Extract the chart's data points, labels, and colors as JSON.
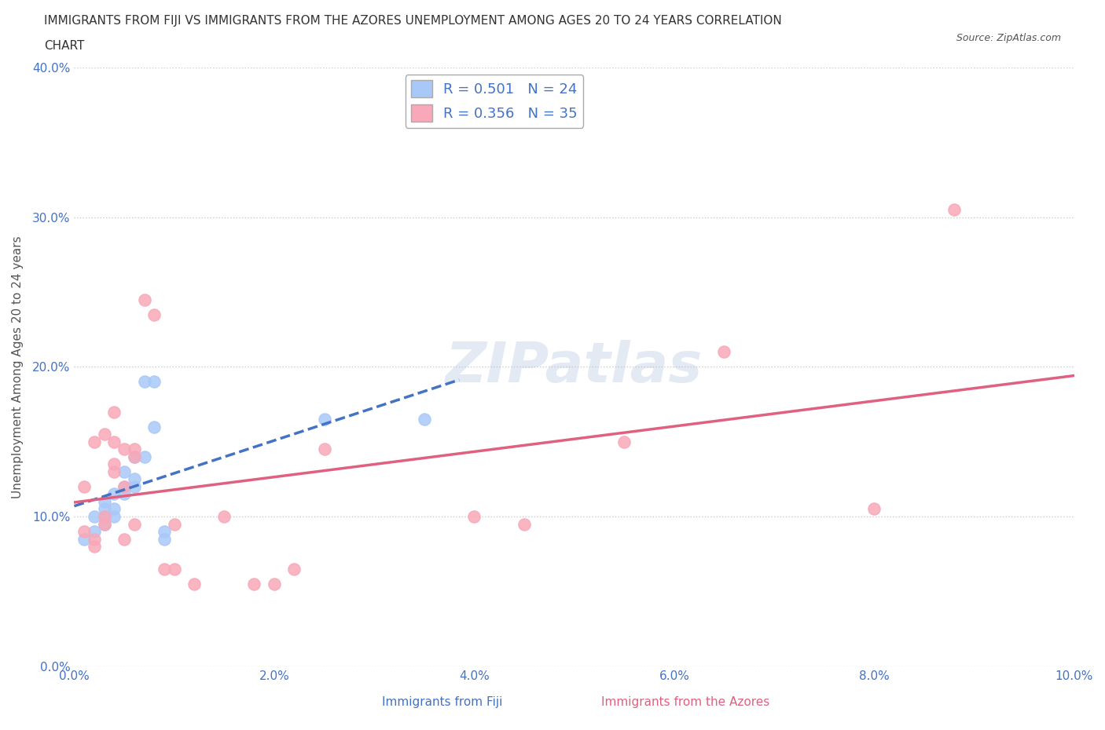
{
  "title_line1": "IMMIGRANTS FROM FIJI VS IMMIGRANTS FROM THE AZORES UNEMPLOYMENT AMONG AGES 20 TO 24 YEARS CORRELATION",
  "title_line2": "CHART",
  "source": "Source: ZipAtlas.com",
  "ylabel": "Unemployment Among Ages 20 to 24 years",
  "xlabel_fiji": "Immigrants from Fiji",
  "xlabel_azores": "Immigrants from the Azores",
  "xlim": [
    0.0,
    0.1
  ],
  "ylim": [
    0.0,
    0.4
  ],
  "xticks": [
    0.0,
    0.02,
    0.04,
    0.06,
    0.08,
    0.1
  ],
  "yticks": [
    0.0,
    0.1,
    0.2,
    0.3,
    0.4
  ],
  "fiji_color": "#a8c8f8",
  "azores_color": "#f8a8b8",
  "fiji_line_color": "#4472c4",
  "azores_line_color": "#e06080",
  "fiji_R": 0.501,
  "fiji_N": 24,
  "azores_R": 0.356,
  "azores_N": 35,
  "fiji_x": [
    0.001,
    0.002,
    0.002,
    0.003,
    0.003,
    0.003,
    0.003,
    0.004,
    0.004,
    0.004,
    0.005,
    0.005,
    0.005,
    0.006,
    0.006,
    0.006,
    0.007,
    0.007,
    0.008,
    0.008,
    0.009,
    0.009,
    0.025,
    0.035
  ],
  "fiji_y": [
    0.085,
    0.09,
    0.1,
    0.095,
    0.1,
    0.105,
    0.11,
    0.105,
    0.1,
    0.115,
    0.12,
    0.115,
    0.13,
    0.12,
    0.125,
    0.14,
    0.14,
    0.19,
    0.19,
    0.16,
    0.09,
    0.085,
    0.165,
    0.165
  ],
  "azores_x": [
    0.001,
    0.001,
    0.002,
    0.002,
    0.002,
    0.003,
    0.003,
    0.003,
    0.004,
    0.004,
    0.004,
    0.004,
    0.005,
    0.005,
    0.005,
    0.006,
    0.006,
    0.006,
    0.007,
    0.008,
    0.009,
    0.01,
    0.01,
    0.012,
    0.015,
    0.018,
    0.02,
    0.022,
    0.025,
    0.04,
    0.045,
    0.055,
    0.065,
    0.08,
    0.088
  ],
  "azores_y": [
    0.09,
    0.12,
    0.08,
    0.085,
    0.15,
    0.095,
    0.1,
    0.155,
    0.13,
    0.135,
    0.15,
    0.17,
    0.085,
    0.12,
    0.145,
    0.095,
    0.14,
    0.145,
    0.245,
    0.235,
    0.065,
    0.095,
    0.065,
    0.055,
    0.1,
    0.055,
    0.055,
    0.065,
    0.145,
    0.1,
    0.095,
    0.15,
    0.21,
    0.105,
    0.305
  ],
  "watermark": "ZIPatlas",
  "background_color": "#ffffff",
  "grid_color": "#cccccc"
}
